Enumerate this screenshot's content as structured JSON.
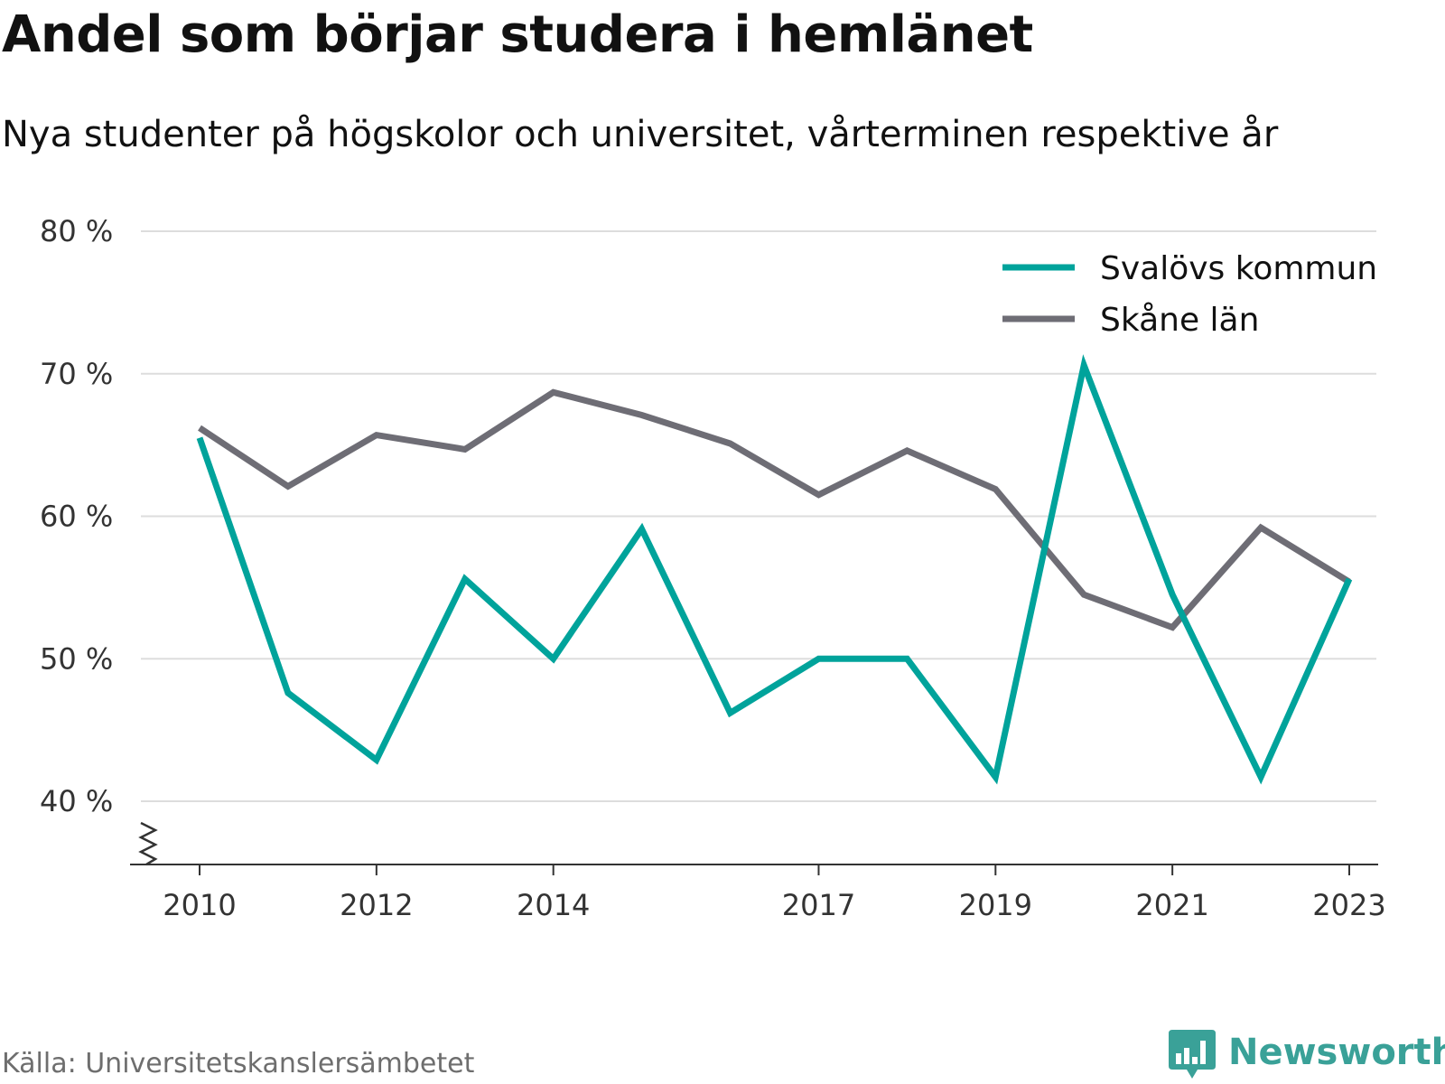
{
  "title": "Andel som börjar studera i hemlänet",
  "subtitle": "Nya studenter på högskolor och universitet, vårterminen respektive år",
  "source": "Källa: Universitetskanslersämbetet",
  "brand": {
    "name": "Newsworthy",
    "color": "#3aa198"
  },
  "chart_data": {
    "type": "line",
    "title": "Andel som börjar studera i hemlänet",
    "subtitle": "Nya studenter på högskolor och universitet, vårterminen respektive år",
    "x": [
      2010,
      2011,
      2012,
      2013,
      2014,
      2015,
      2016,
      2017,
      2018,
      2019,
      2020,
      2021,
      2022,
      2023
    ],
    "x_ticks": [
      2010,
      2012,
      2014,
      2017,
      2019,
      2021,
      2023
    ],
    "y_ticks": [
      40,
      50,
      60,
      70,
      80
    ],
    "y_tick_suffix": " %",
    "ylim": [
      35.5,
      80
    ],
    "xlim": [
      2009.4,
      2023.65
    ],
    "y_axis_break": true,
    "grid": true,
    "legend_position": "top-right",
    "series": [
      {
        "name": "Svalövs kommun",
        "color": "#00a39b",
        "values": [
          65.5,
          47.6,
          42.9,
          55.6,
          50.0,
          59.1,
          46.2,
          50.0,
          50.0,
          41.7,
          70.6,
          54.5,
          41.7,
          55.6
        ]
      },
      {
        "name": "Skåne län",
        "color": "#6e6d75",
        "values": [
          66.2,
          62.1,
          65.7,
          64.7,
          68.7,
          67.1,
          65.1,
          61.5,
          64.6,
          61.9,
          54.5,
          52.2,
          59.2,
          55.4
        ]
      }
    ]
  }
}
